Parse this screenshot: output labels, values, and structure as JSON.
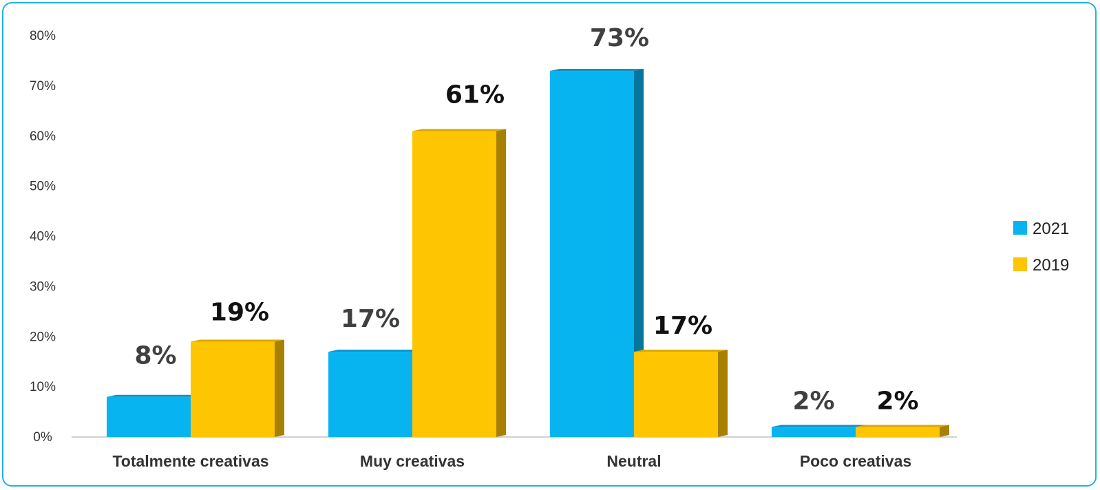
{
  "chart_data": {
    "type": "bar",
    "categories": [
      "Totalmente creativas",
      "Muy creativas",
      "Neutral",
      "Poco creativas"
    ],
    "series": [
      {
        "name": "2021",
        "values": [
          8,
          17,
          73,
          2
        ],
        "labels": [
          "8%",
          "17%",
          "73%",
          "2%"
        ],
        "color": "#08b4f0",
        "side_color": "#05779f",
        "top_color": "#0a94c8"
      },
      {
        "name": "2019",
        "values": [
          19,
          61,
          17,
          2
        ],
        "labels": [
          "19%",
          "61%",
          "17%",
          "2%"
        ],
        "color": "#fec502",
        "side_color": "#a88000",
        "top_color": "#d9a800"
      }
    ],
    "yticks": [
      "0%",
      "10%",
      "20%",
      "30%",
      "40%",
      "50%",
      "60%",
      "70%",
      "80%"
    ],
    "ylim": [
      0,
      80
    ],
    "grid": false,
    "legend": "right",
    "label_colors": {
      "2021": "#404040",
      "2019": "#111111"
    }
  }
}
